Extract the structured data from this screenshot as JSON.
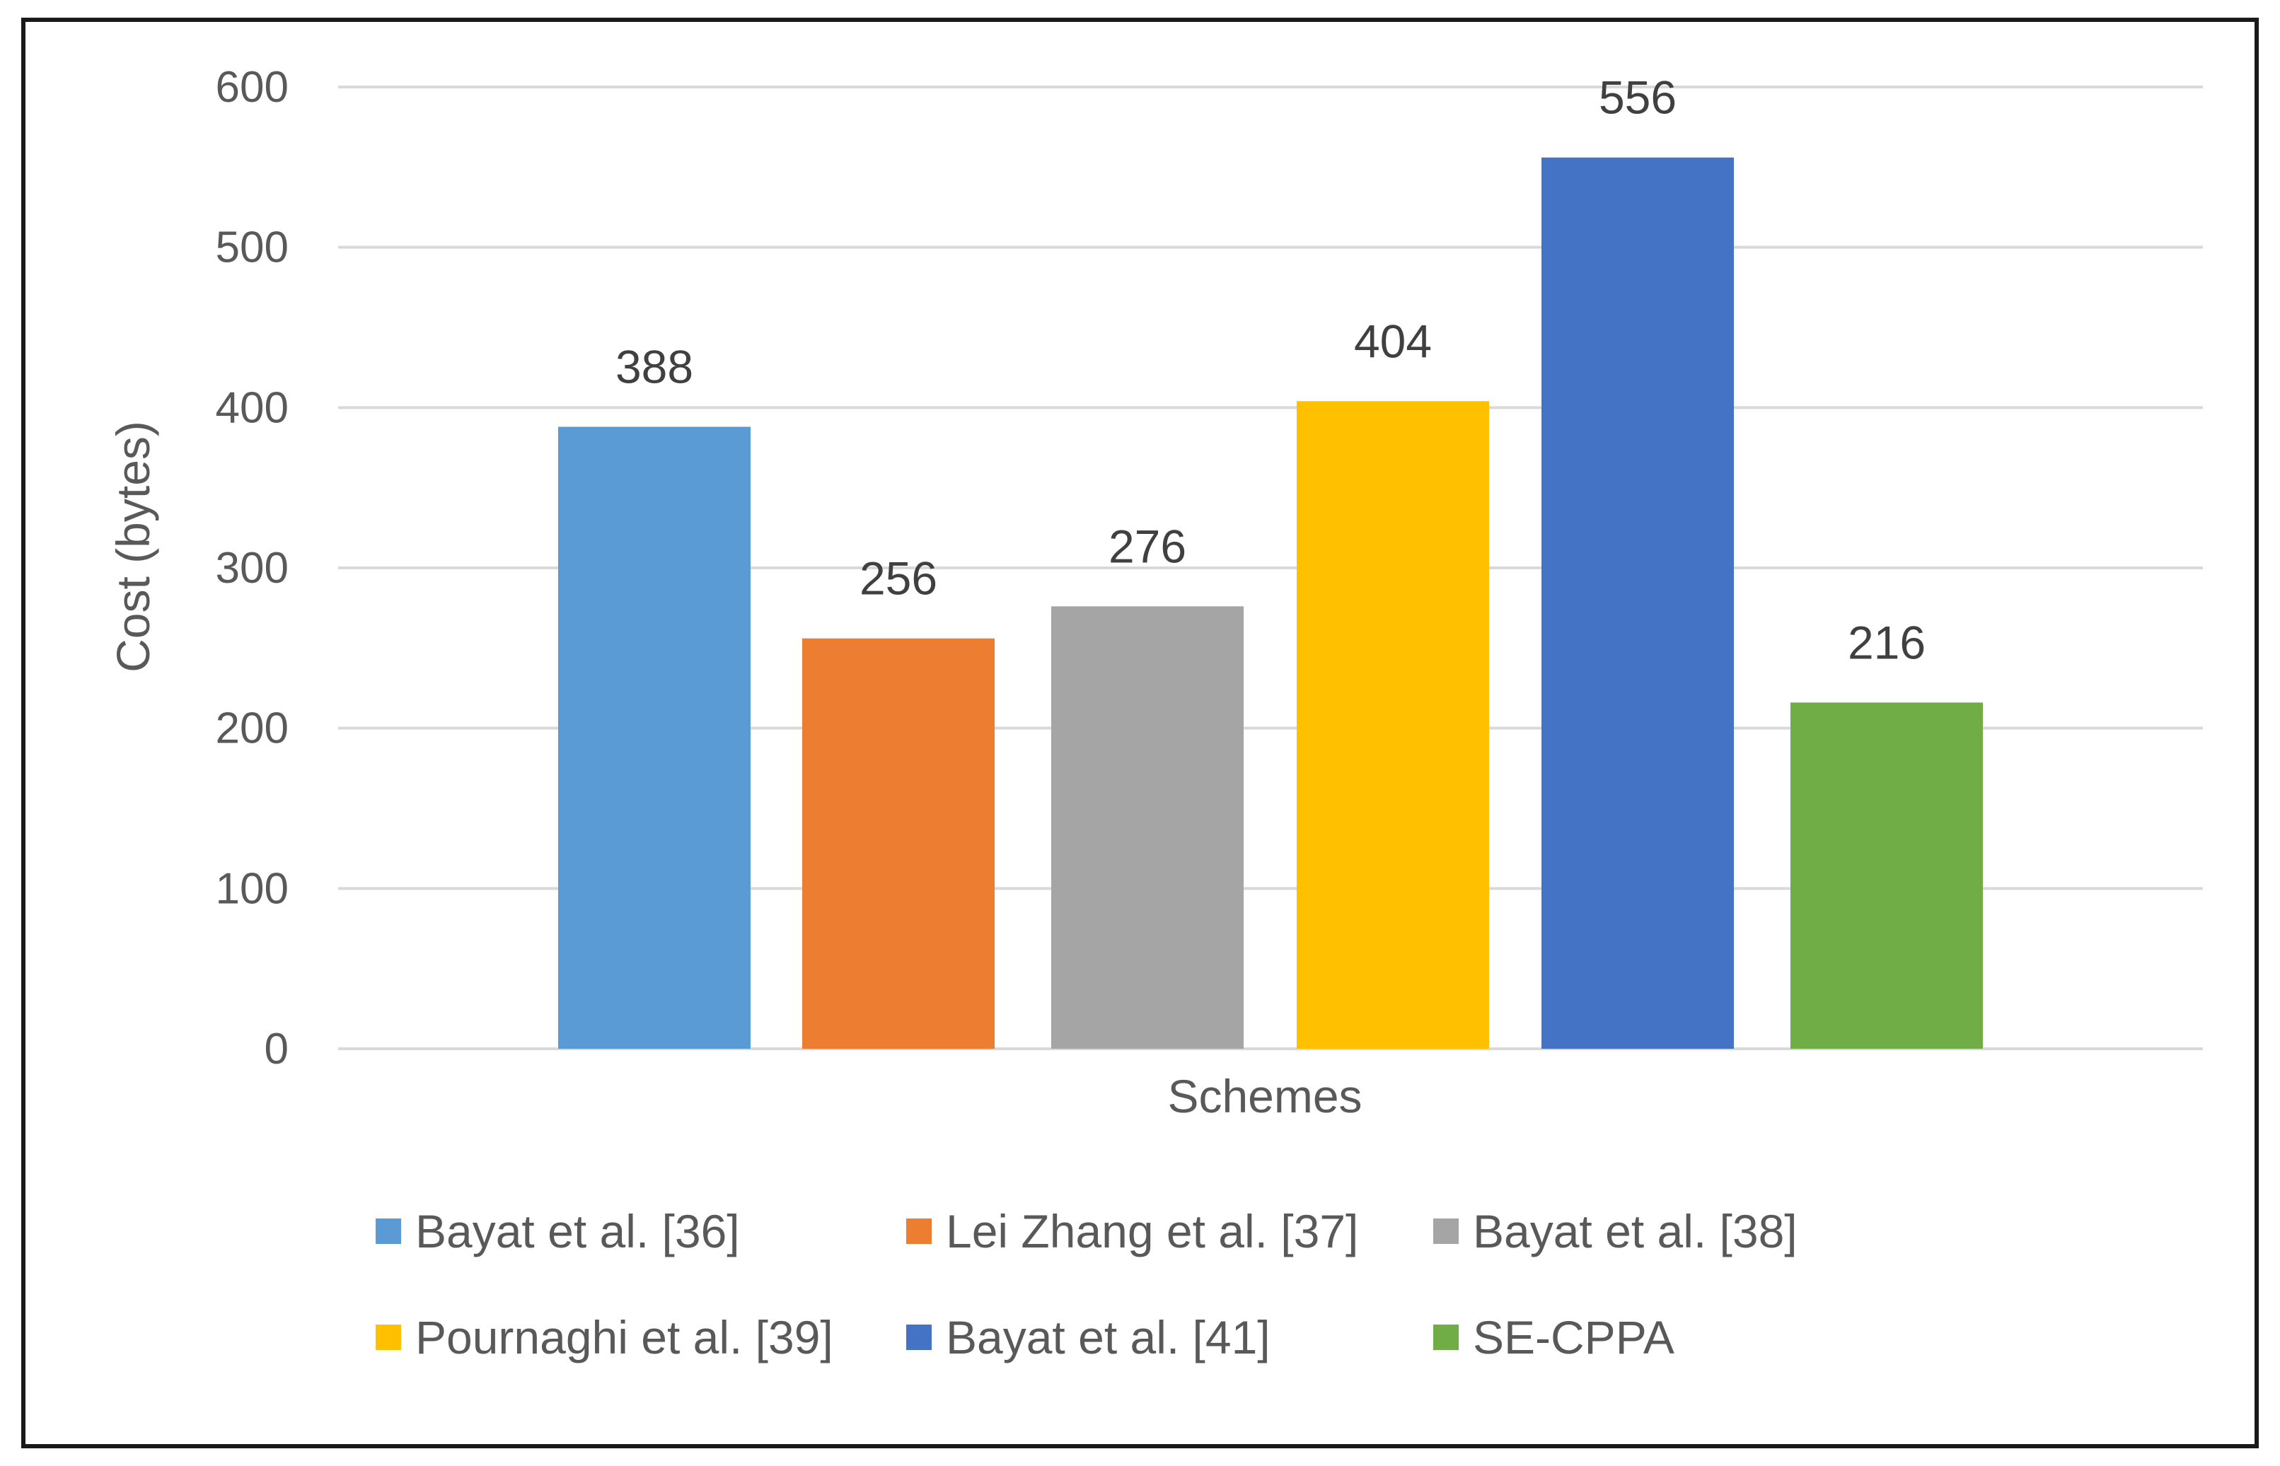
{
  "chart_data": {
    "type": "bar",
    "title": "",
    "xlabel": "Schemes",
    "ylabel": "Cost (bytes)",
    "ylim": [
      0,
      600
    ],
    "yticks": [
      0,
      100,
      200,
      300,
      400,
      500,
      600
    ],
    "grid": true,
    "legend_position": "bottom",
    "series": [
      {
        "name": "Bayat et al. [36]",
        "value": 388,
        "color": "#5B9BD5"
      },
      {
        "name": "Lei Zhang et al. [37]",
        "value": 256,
        "color": "#ED7D31"
      },
      {
        "name": "Bayat et al. [38]",
        "value": 276,
        "color": "#A5A5A5"
      },
      {
        "name": "Pournaghi et al. [39]",
        "value": 404,
        "color": "#FFC000"
      },
      {
        "name": "Bayat et al. [41]",
        "value": 556,
        "color": "#4472C4"
      },
      {
        "name": "SE-CPPA",
        "value": 216,
        "color": "#70AD47"
      }
    ]
  }
}
